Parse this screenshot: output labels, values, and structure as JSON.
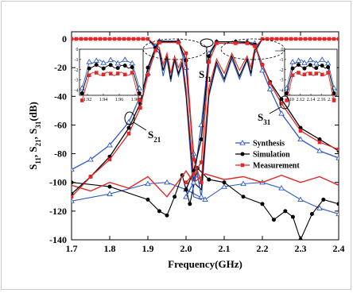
{
  "chart_data": {
    "type": "line",
    "title": "",
    "xlabel": "Frequency(GHz)",
    "ylabel_parts": [
      "S",
      "11",
      ", S",
      "21",
      ", S",
      "31",
      "(dB)"
    ],
    "xlim": [
      1.7,
      2.4
    ],
    "ylim": [
      -140,
      5
    ],
    "xticks": [
      "1.7",
      "1.8",
      "1.9",
      "2.0",
      "2.1",
      "2.2",
      "2.3",
      "2.4"
    ],
    "yticks": [
      "0",
      "-20",
      "-40",
      "-60",
      "-80",
      "-100",
      "-120",
      "-140"
    ],
    "legend_placement": "right",
    "annotations": [
      {
        "label": "S",
        "sub": "11"
      },
      {
        "label": "S",
        "sub": "21"
      },
      {
        "label": "S",
        "sub": "31"
      }
    ],
    "series": [
      {
        "name": "Synthesis",
        "color": "#2e59c4",
        "marker": "open-triangle",
        "s21": [
          [
            1.7,
            -91
          ],
          [
            1.75,
            -84
          ],
          [
            1.8,
            -74
          ],
          [
            1.85,
            -58
          ],
          [
            1.88,
            -40
          ],
          [
            1.9,
            -24
          ],
          [
            1.92,
            -5
          ],
          [
            1.93,
            -1.5
          ],
          [
            1.98,
            -1.5
          ],
          [
            2.0,
            -20
          ],
          [
            2.02,
            -80
          ],
          [
            2.04,
            -110
          ]
        ],
        "s31": [
          [
            2.0,
            -110
          ],
          [
            2.02,
            -100
          ],
          [
            2.04,
            -60
          ],
          [
            2.06,
            -10
          ],
          [
            2.08,
            -2
          ],
          [
            2.13,
            -2
          ],
          [
            2.16,
            -2
          ],
          [
            2.18,
            -3
          ],
          [
            2.2,
            -22
          ],
          [
            2.22,
            -35
          ],
          [
            2.25,
            -52
          ],
          [
            2.3,
            -70
          ],
          [
            2.35,
            -78
          ],
          [
            2.4,
            -83
          ]
        ],
        "iso": [
          [
            1.7,
            -113
          ],
          [
            1.8,
            -108
          ],
          [
            1.9,
            -101
          ],
          [
            1.95,
            -100
          ],
          [
            2.0,
            -105
          ],
          [
            2.05,
            -112
          ],
          [
            2.1,
            -103
          ],
          [
            2.15,
            -101
          ],
          [
            2.2,
            -100
          ],
          [
            2.25,
            -104
          ],
          [
            2.3,
            -112
          ],
          [
            2.35,
            -118
          ],
          [
            2.4,
            -122
          ]
        ]
      },
      {
        "name": "Simulation",
        "color": "#000000",
        "marker": "filled-circle",
        "s21": [
          [
            1.7,
            -108
          ],
          [
            1.75,
            -96
          ],
          [
            1.8,
            -82
          ],
          [
            1.85,
            -62
          ],
          [
            1.88,
            -45
          ],
          [
            1.9,
            -20
          ],
          [
            1.92,
            -6
          ],
          [
            1.93,
            -2
          ],
          [
            1.98,
            -2
          ],
          [
            2.0,
            -15
          ],
          [
            2.02,
            -84
          ],
          [
            2.04,
            -100
          ]
        ],
        "s31": [
          [
            2.0,
            -105
          ],
          [
            2.02,
            -92
          ],
          [
            2.04,
            -70
          ],
          [
            2.06,
            -12
          ],
          [
            2.08,
            -2
          ],
          [
            2.13,
            -2
          ],
          [
            2.16,
            -2.5
          ],
          [
            2.18,
            -4
          ],
          [
            2.2,
            -18
          ],
          [
            2.22,
            -30
          ],
          [
            2.25,
            -42
          ],
          [
            2.3,
            -62
          ],
          [
            2.35,
            -70
          ],
          [
            2.4,
            -78
          ]
        ],
        "iso": [
          [
            1.7,
            -100
          ],
          [
            1.8,
            -103
          ],
          [
            1.9,
            -112
          ],
          [
            1.93,
            -120
          ],
          [
            1.95,
            -123
          ],
          [
            1.97,
            -110
          ],
          [
            1.99,
            -95
          ],
          [
            2.01,
            -115
          ],
          [
            2.03,
            -90
          ],
          [
            2.06,
            -98
          ],
          [
            2.1,
            -100
          ],
          [
            2.15,
            -110
          ],
          [
            2.2,
            -115
          ],
          [
            2.23,
            -126
          ],
          [
            2.26,
            -120
          ],
          [
            2.28,
            -124
          ],
          [
            2.3,
            -140
          ],
          [
            2.33,
            -122
          ],
          [
            2.36,
            -112
          ],
          [
            2.4,
            -115
          ]
        ]
      },
      {
        "name": "Measurement",
        "color": "#e22828",
        "marker": "filled-square",
        "s21": [
          [
            1.7,
            -110
          ],
          [
            1.75,
            -96
          ],
          [
            1.8,
            -84
          ],
          [
            1.85,
            -66
          ],
          [
            1.88,
            -48
          ],
          [
            1.9,
            -25
          ],
          [
            1.92,
            -8
          ],
          [
            1.93,
            -2.5
          ],
          [
            1.98,
            -2.5
          ],
          [
            2.0,
            -10
          ],
          [
            2.02,
            -84
          ],
          [
            2.04,
            -100
          ]
        ],
        "s31": [
          [
            2.0,
            -100
          ],
          [
            2.02,
            -94
          ],
          [
            2.04,
            -86
          ],
          [
            2.06,
            -16
          ],
          [
            2.08,
            -3
          ],
          [
            2.13,
            -3
          ],
          [
            2.16,
            -3
          ],
          [
            2.18,
            -5
          ],
          [
            2.2,
            -18
          ],
          [
            2.22,
            -31
          ],
          [
            2.25,
            -45
          ],
          [
            2.3,
            -64
          ],
          [
            2.35,
            -72
          ],
          [
            2.4,
            -77
          ]
        ],
        "iso": [
          [
            1.7,
            -102
          ],
          [
            1.75,
            -106
          ],
          [
            1.8,
            -100
          ],
          [
            1.85,
            -104
          ],
          [
            1.9,
            -96
          ],
          [
            1.95,
            -110
          ],
          [
            2.0,
            -92
          ],
          [
            2.02,
            -100
          ],
          [
            2.05,
            -94
          ],
          [
            2.1,
            -98
          ],
          [
            2.15,
            -96
          ],
          [
            2.2,
            -100
          ],
          [
            2.25,
            -95
          ],
          [
            2.3,
            -100
          ],
          [
            2.35,
            -96
          ],
          [
            2.4,
            -102
          ]
        ]
      }
    ],
    "s11_data": [
      {
        "series": "Synthesis",
        "points": [
          [
            1.7,
            0
          ],
          [
            1.9,
            0
          ],
          [
            1.93,
            -10
          ],
          [
            1.94,
            -26
          ],
          [
            1.95,
            -14
          ],
          [
            1.96,
            -30
          ],
          [
            1.97,
            -15
          ],
          [
            1.98,
            -26
          ],
          [
            1.99,
            -18
          ],
          [
            2.0,
            -40
          ],
          [
            2.02,
            -110
          ],
          [
            2.04,
            -112
          ],
          [
            2.06,
            -40
          ],
          [
            2.08,
            -18
          ],
          [
            2.1,
            -30
          ],
          [
            2.12,
            -14
          ],
          [
            2.14,
            -28
          ],
          [
            2.16,
            -15
          ],
          [
            2.17,
            -26
          ],
          [
            2.18,
            -10
          ],
          [
            2.2,
            0
          ],
          [
            2.4,
            0
          ]
        ]
      },
      {
        "series": "Simulation",
        "points": [
          [
            1.7,
            0
          ],
          [
            1.9,
            0
          ],
          [
            1.93,
            -8
          ],
          [
            1.94,
            -22
          ],
          [
            1.95,
            -12
          ],
          [
            1.96,
            -28
          ],
          [
            1.97,
            -14
          ],
          [
            1.98,
            -24
          ],
          [
            1.99,
            -16
          ],
          [
            2.0,
            -38
          ],
          [
            2.02,
            -100
          ],
          [
            2.04,
            -105
          ],
          [
            2.06,
            -38
          ],
          [
            2.08,
            -16
          ],
          [
            2.1,
            -28
          ],
          [
            2.12,
            -12
          ],
          [
            2.14,
            -26
          ],
          [
            2.16,
            -14
          ],
          [
            2.17,
            -24
          ],
          [
            2.18,
            -8
          ],
          [
            2.2,
            0
          ],
          [
            2.4,
            0
          ]
        ]
      },
      {
        "series": "Measurement",
        "points": [
          [
            1.7,
            0
          ],
          [
            1.9,
            0
          ],
          [
            1.93,
            -6
          ],
          [
            1.94,
            -18
          ],
          [
            1.95,
            -10
          ],
          [
            1.96,
            -24
          ],
          [
            1.97,
            -12
          ],
          [
            1.98,
            -20
          ],
          [
            1.99,
            -14
          ],
          [
            2.0,
            -34
          ],
          [
            2.02,
            -95
          ],
          [
            2.04,
            -98
          ],
          [
            2.06,
            -34
          ],
          [
            2.08,
            -14
          ],
          [
            2.1,
            -24
          ],
          [
            2.12,
            -10
          ],
          [
            2.14,
            -22
          ],
          [
            2.16,
            -12
          ],
          [
            2.17,
            -20
          ],
          [
            2.18,
            -6
          ],
          [
            2.2,
            0
          ],
          [
            2.4,
            0
          ]
        ]
      }
    ],
    "insets": [
      {
        "xticks": [
          "1.92",
          "1.94",
          "1.96",
          "1.98"
        ],
        "yticks": [
          "0",
          "-1",
          "-2",
          "-3",
          "-4"
        ],
        "xlim": [
          1.91,
          1.99
        ],
        "ylim": [
          -4.5,
          0
        ]
      },
      {
        "xticks": [
          "2.10",
          "2.12",
          "2.14",
          "2.16",
          "2.18"
        ],
        "yticks": [
          "0",
          "-1",
          "-2",
          "-3",
          "-4"
        ],
        "xlim": [
          2.09,
          2.19
        ],
        "ylim": [
          -4.5,
          0
        ]
      }
    ]
  }
}
